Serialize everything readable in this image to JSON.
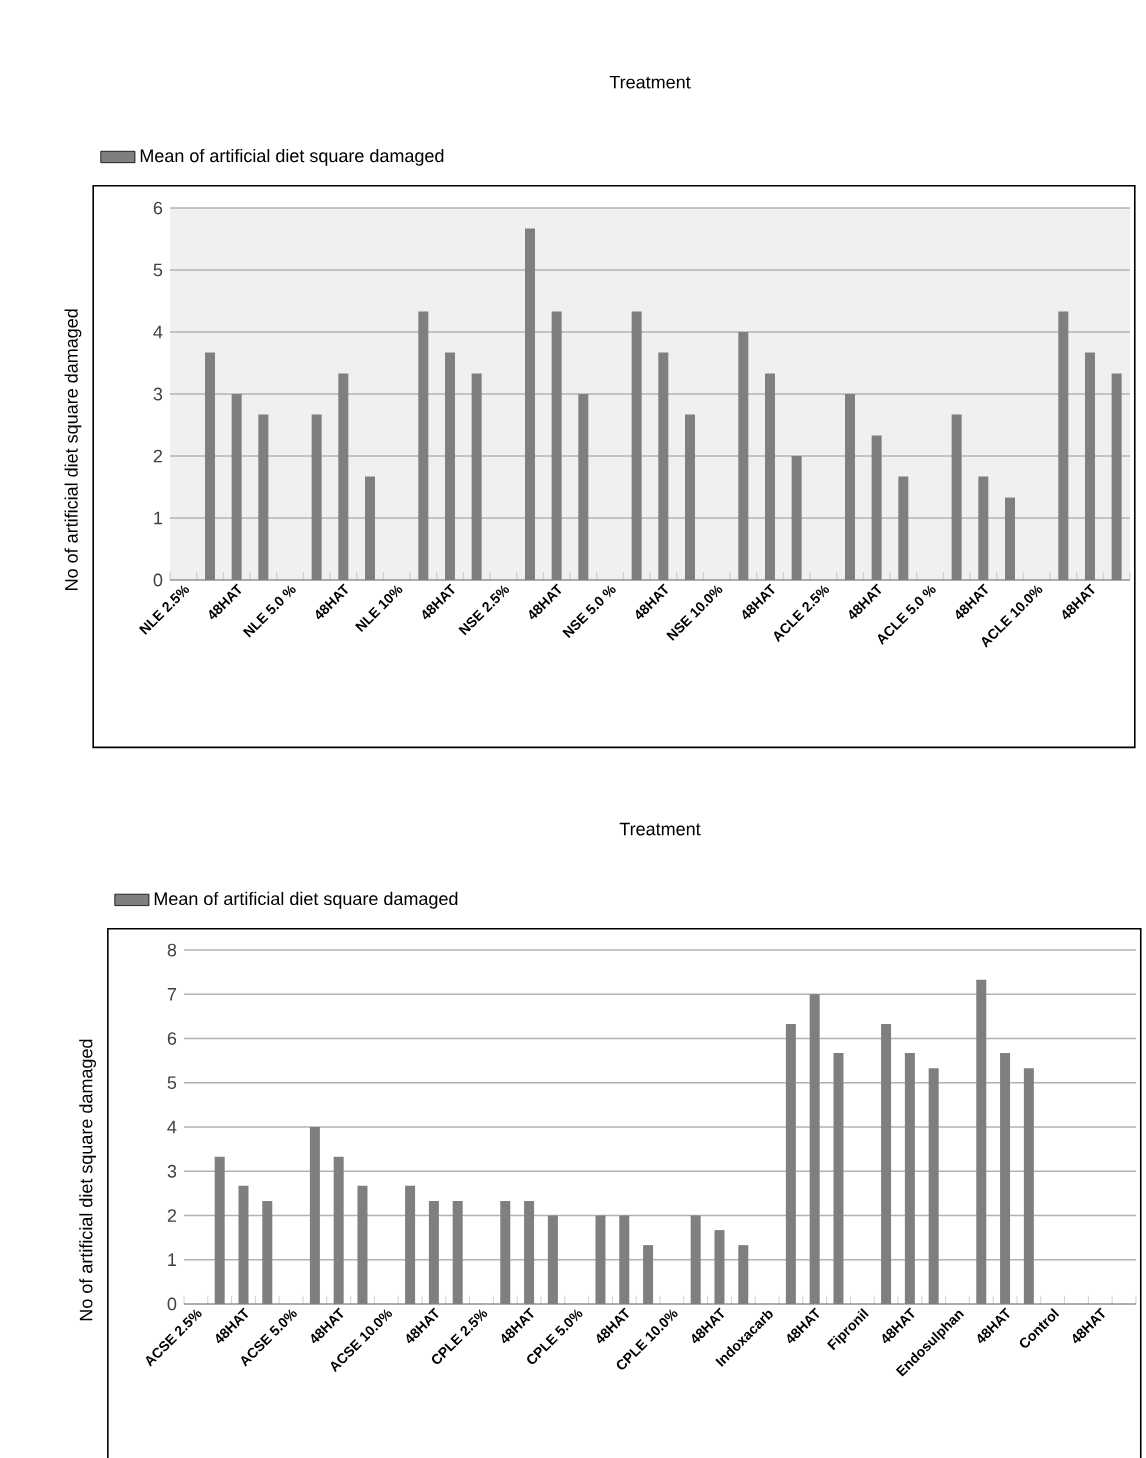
{
  "chart_data": [
    {
      "type": "bar",
      "title": "Treatment",
      "ylabel": "No of artificial diet square damaged",
      "categories": [
        "NLE 2.5%",
        null,
        "48HAT",
        null,
        "NLE 5.0 %",
        null,
        "48HAT",
        null,
        "NLE 10%",
        null,
        "48HAT",
        null,
        "NSE 2.5%",
        null,
        "48HAT",
        null,
        "NSE 5.0 %",
        null,
        "48HAT",
        null,
        "NSE 10.0%",
        null,
        "48HAT",
        null,
        "ACLE 2.5%",
        null,
        "48HAT",
        null,
        "ACLE 5.0 %",
        null,
        "48HAT",
        null,
        "ACLE 10.0%",
        null,
        "48HAT",
        null
      ],
      "series": [
        {
          "name": "Mean of artificial diet square damaged",
          "color": "#7f7f7f",
          "values": [
            null,
            3.67,
            3.0,
            2.67,
            null,
            2.67,
            3.33,
            1.67,
            null,
            4.33,
            3.67,
            3.33,
            null,
            5.67,
            4.33,
            3.0,
            null,
            4.33,
            3.67,
            2.67,
            null,
            4.0,
            3.33,
            2.0,
            null,
            3.0,
            2.33,
            1.67,
            null,
            2.67,
            1.67,
            1.33,
            null,
            4.33,
            3.67,
            3.33
          ]
        }
      ],
      "ylim": [
        0,
        6
      ],
      "yticks": [
        0,
        1,
        2,
        3,
        4,
        5,
        6
      ],
      "grid": "y",
      "legend": "top left"
    },
    {
      "type": "bar",
      "title": "Treatment",
      "ylabel": "No of artificial diet square damaged",
      "categories": [
        "ACSE 2.5%",
        null,
        "48HAT",
        null,
        "ACSE 5.0%",
        null,
        "48HAT",
        null,
        "ACSE 10.0%",
        null,
        "48HAT",
        null,
        "CPLE 2.5%",
        null,
        "48HAT",
        null,
        "CPLE 5.0%",
        null,
        "48HAT",
        null,
        "CPLE 10.0%",
        null,
        "48HAT",
        null,
        "Indoxacarb",
        null,
        "48HAT",
        null,
        "Fipronil",
        null,
        "48HAT",
        null,
        "Endosulphan",
        null,
        "48HAT",
        null,
        "Control",
        null,
        "48HAT",
        null
      ],
      "series": [
        {
          "name": "Mean of artificial diet square damaged",
          "color": "#7f7f7f",
          "values": [
            null,
            3.33,
            2.67,
            2.33,
            null,
            4.0,
            3.33,
            2.67,
            null,
            2.67,
            2.33,
            2.33,
            null,
            2.33,
            2.33,
            2.0,
            null,
            2.0,
            2.0,
            1.33,
            null,
            2.0,
            1.67,
            1.33,
            null,
            6.33,
            7.0,
            5.67,
            null,
            6.33,
            5.67,
            5.33,
            null,
            7.33,
            5.67,
            5.33,
            null,
            0,
            0,
            0
          ]
        }
      ],
      "ylim": [
        0,
        8
      ],
      "yticks": [
        0,
        1,
        2,
        3,
        4,
        5,
        6,
        7,
        8
      ],
      "grid": "y",
      "legend": "top left"
    }
  ]
}
